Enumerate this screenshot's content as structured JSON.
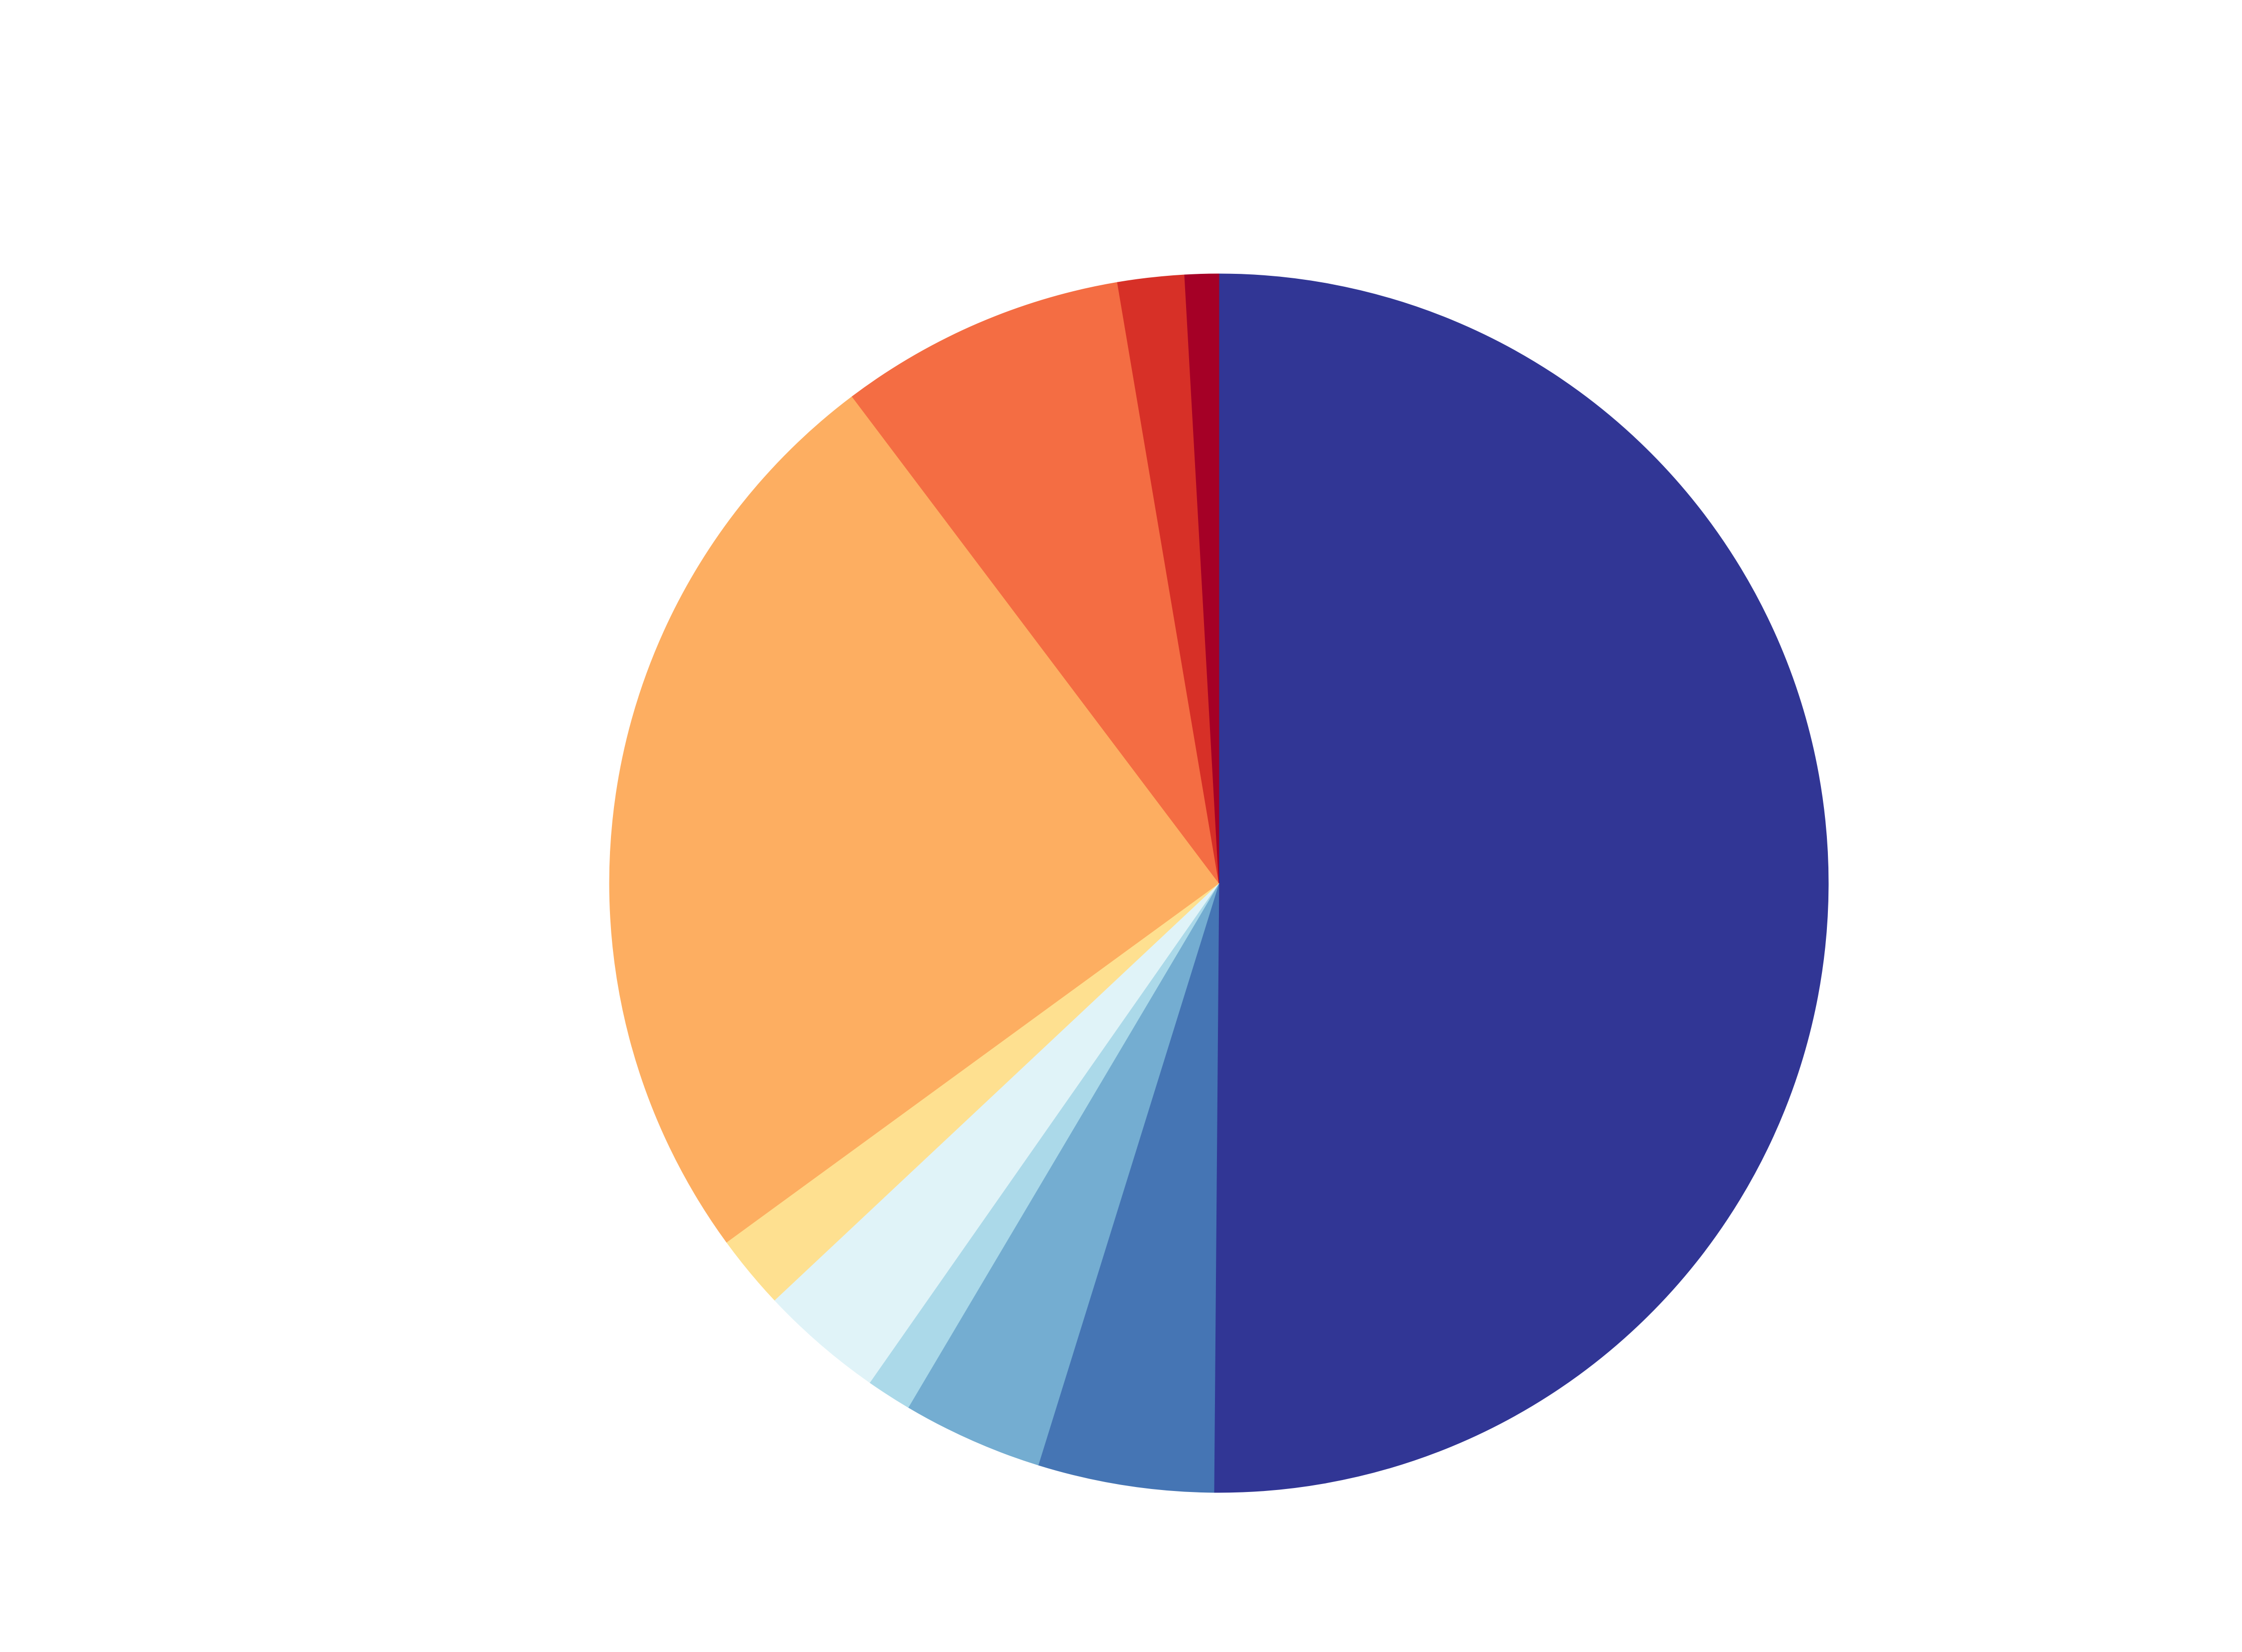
{
  "chart_data": {
    "type": "pie",
    "slices": [
      {
        "value": 50.23,
        "color": "#313695"
      },
      {
        "value": 4.67,
        "color": "#4575b4"
      },
      {
        "value": 3.73,
        "color": "#74add1"
      },
      {
        "value": 1.2,
        "color": "#abd9e9"
      },
      {
        "value": 3.3,
        "color": "#e0f3f8"
      },
      {
        "value": 1.97,
        "color": "#fee090"
      },
      {
        "value": 24.8,
        "color": "#fdae61"
      },
      {
        "value": 7.63,
        "color": "#f46d43"
      },
      {
        "value": 1.77,
        "color": "#d73027"
      },
      {
        "value": 0.9,
        "color": "#a50026"
      }
    ],
    "start_angle": "top",
    "direction": "clockwise",
    "legend": "none"
  }
}
